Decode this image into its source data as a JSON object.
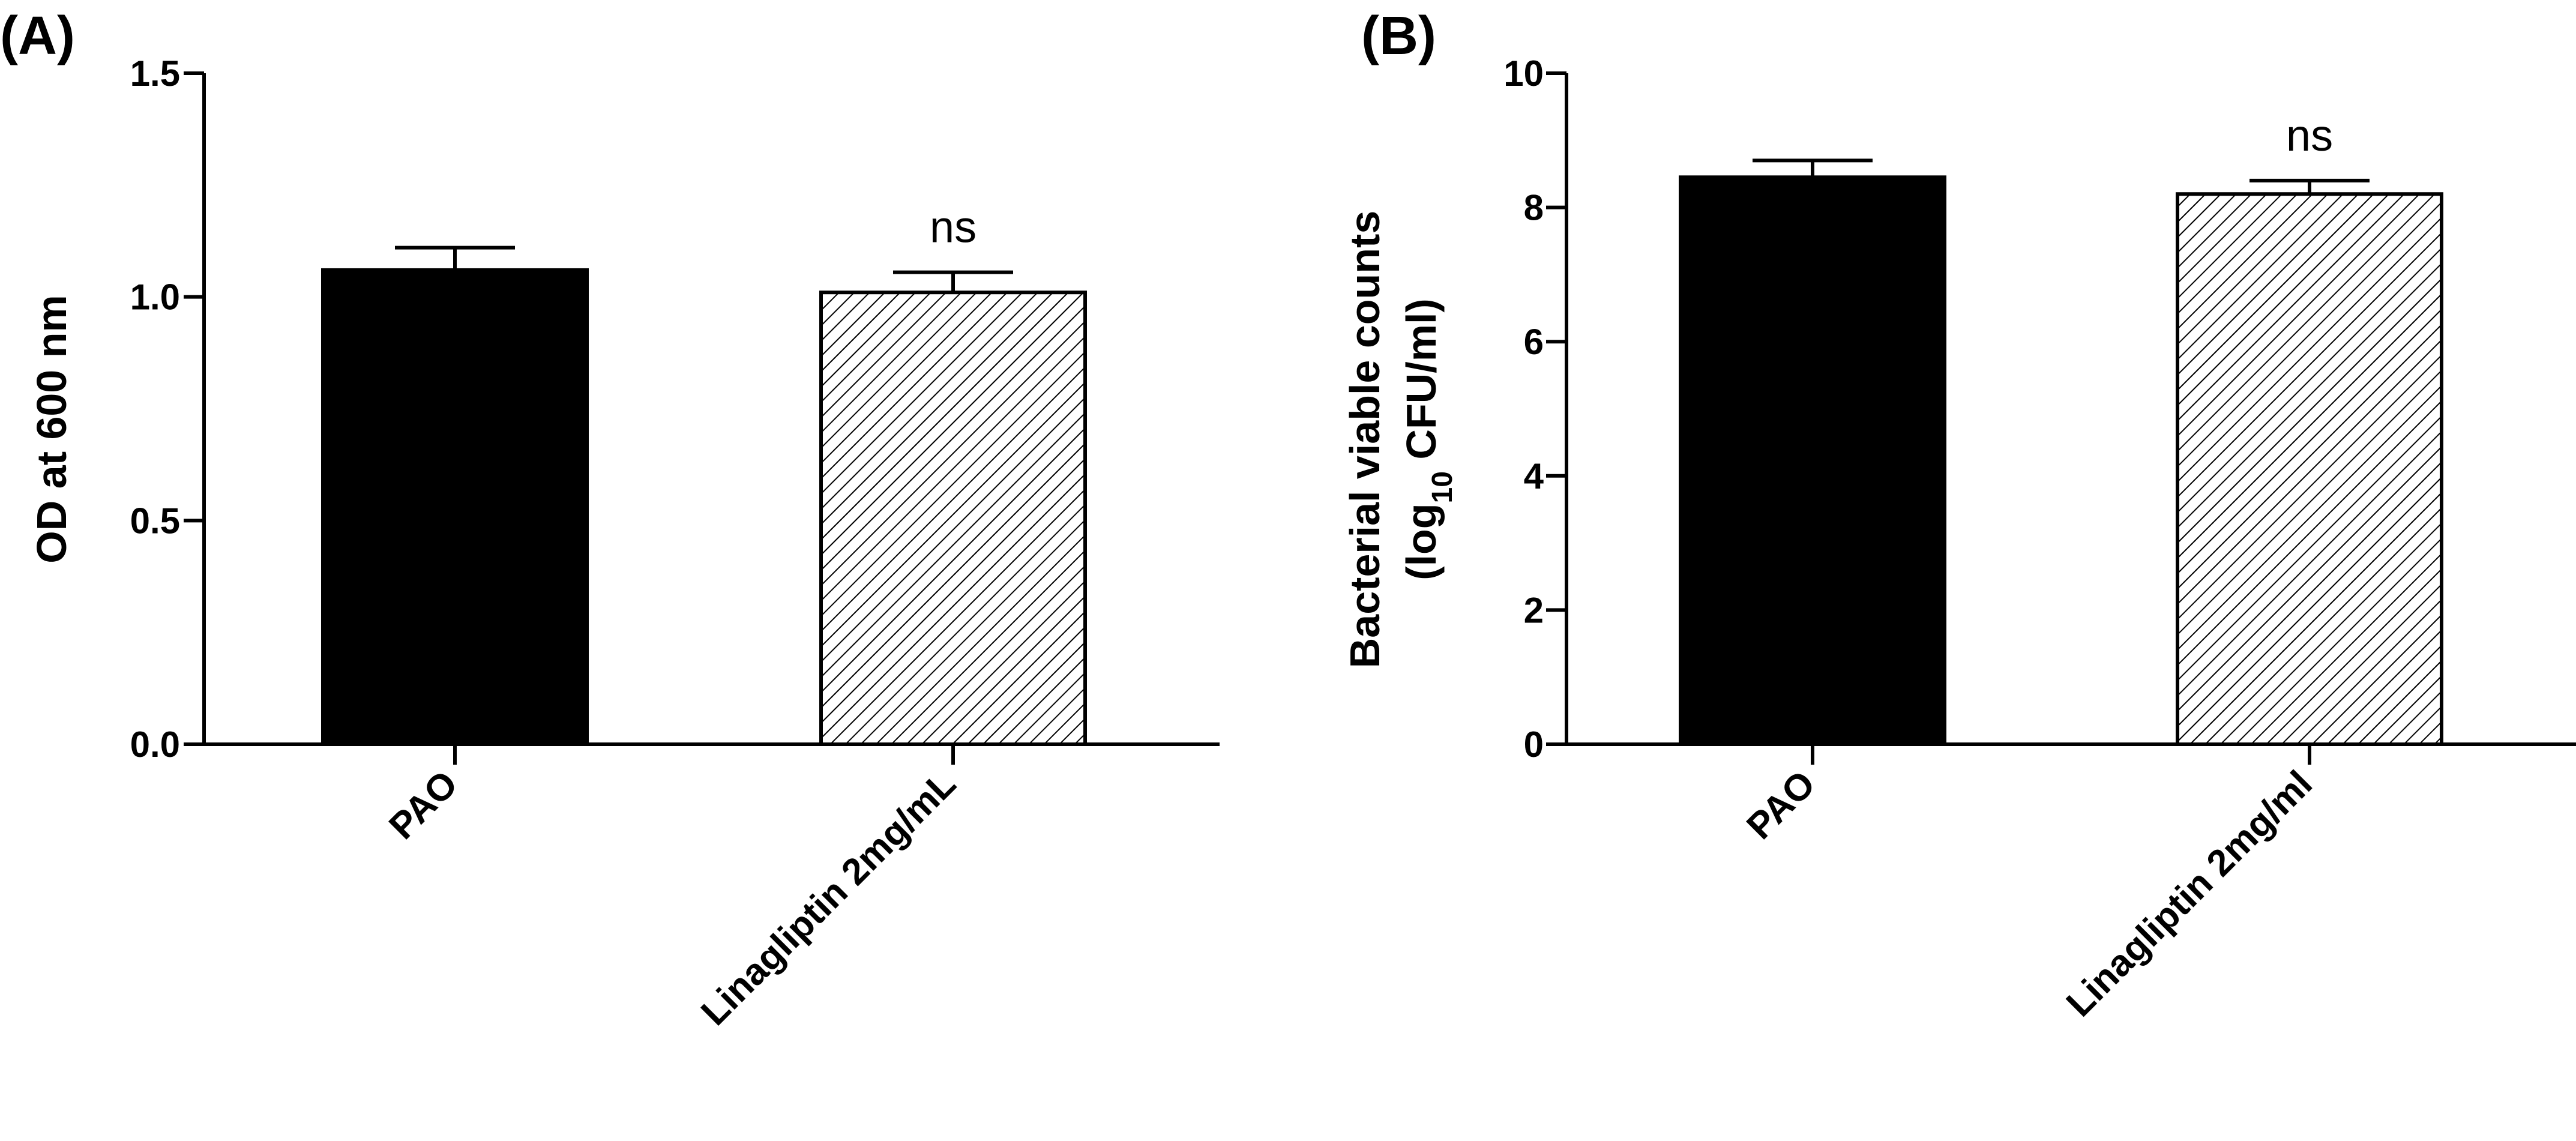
{
  "chart_data": [
    {
      "type": "bar",
      "panel_label": "(A)",
      "ylabel": "OD at 600 nm",
      "ylim": [
        0,
        1.5
      ],
      "yticks": [
        "0.0",
        "0.5",
        "1.0",
        "1.5"
      ],
      "ytick_values": [
        0,
        0.5,
        1.0,
        1.5
      ],
      "categories": [
        "PAO",
        "Linagliptin 2mg/mL"
      ],
      "values": [
        1.06,
        1.01
      ],
      "errors": [
        0.05,
        0.045
      ],
      "fills": [
        "solid",
        "hatched"
      ],
      "annotations": [
        "",
        "ns"
      ],
      "grid": false
    },
    {
      "type": "bar",
      "panel_label": "(B)",
      "ylabel_line1": "Bacterial viable counts",
      "ylabel_line2_prefix": "(log",
      "ylabel_line2_sub": "10",
      "ylabel_line2_suffix": " CFU/ml)",
      "ylim": [
        0,
        10
      ],
      "yticks": [
        "0",
        "2",
        "4",
        "6",
        "8",
        "10"
      ],
      "ytick_values": [
        0,
        2,
        4,
        6,
        8,
        10
      ],
      "categories": [
        "PAO",
        "Linagliptin 2mg/ml"
      ],
      "values": [
        8.45,
        8.2
      ],
      "errors": [
        0.25,
        0.2
      ],
      "fills": [
        "solid",
        "hatched"
      ],
      "annotations": [
        "",
        "ns"
      ],
      "grid": false
    }
  ],
  "colors": {
    "bar_solid": "#000000",
    "hatch": "#000000",
    "background": "#ffffff"
  }
}
